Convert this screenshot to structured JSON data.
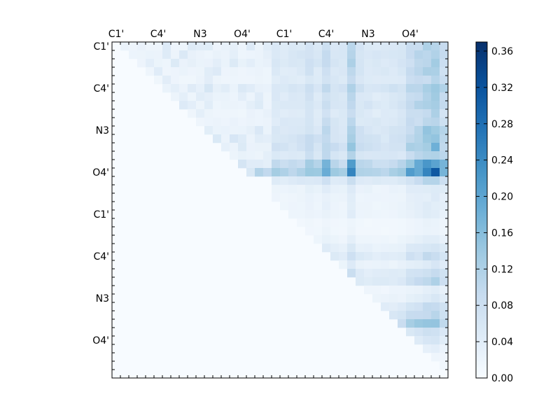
{
  "chart_data": {
    "type": "heatmap",
    "title": "",
    "xlabel": "",
    "ylabel": "",
    "grid": false,
    "matrix_size": 40,
    "x_tick_labels": [
      "C1'",
      "C4'",
      "N3",
      "O4'",
      "C1'",
      "C4'",
      "N3",
      "O4'"
    ],
    "y_tick_labels": [
      "C1'",
      "C4'",
      "N3",
      "O4'",
      "C1'",
      "C4'",
      "N3",
      "O4'"
    ],
    "tick_label_positions": [
      0.5,
      5.5,
      10.5,
      15.5,
      20.5,
      25.5,
      30.5,
      35.5
    ],
    "colorbar": {
      "range": [
        0.0,
        0.37
      ],
      "tick_values": [
        0.0,
        0.04,
        0.08,
        0.12,
        0.16,
        0.2,
        0.24,
        0.28,
        0.32,
        0.36
      ],
      "tick_labels": [
        "0.00",
        "0.04",
        "0.08",
        "0.12",
        "0.16",
        "0.20",
        "0.24",
        "0.28",
        "0.32",
        "0.36"
      ],
      "colormap": "Blues",
      "placement": "right"
    },
    "column_profile": [
      0,
      0,
      0,
      0,
      0,
      0,
      0,
      0,
      0,
      0,
      0,
      0,
      0,
      0,
      0,
      0,
      0,
      0,
      0,
      0.55,
      0.55,
      0.55,
      0.6,
      0.75,
      0.6,
      0.95,
      0.65,
      0.6,
      1.15,
      0.65,
      0.6,
      0.55,
      0.55,
      0.6,
      0.65,
      0.95,
      1.05,
      1.25,
      1.35,
      0.95
    ],
    "row_profile": [
      0.55,
      0.6,
      0.6,
      0.55,
      0.5,
      0.7,
      0.55,
      0.6,
      0.5,
      0.55,
      0.65,
      0.7,
      0.75,
      0.6,
      1.05,
      1.3,
      0.5,
      0.25,
      0.2,
      0.2,
      0.2,
      0.12,
      0.12,
      0.18,
      0.3,
      0.45,
      0.25,
      0.45,
      0.5,
      0.18,
      0.25,
      0.45,
      0.55,
      0.75,
      0.4,
      0.3,
      0.15,
      0.08,
      0.08,
      0.05
    ],
    "base_value": 0.16,
    "upper_block_note_rows": [
      0,
      15
    ],
    "upper_block_note_cols": [
      19,
      39
    ]
  }
}
